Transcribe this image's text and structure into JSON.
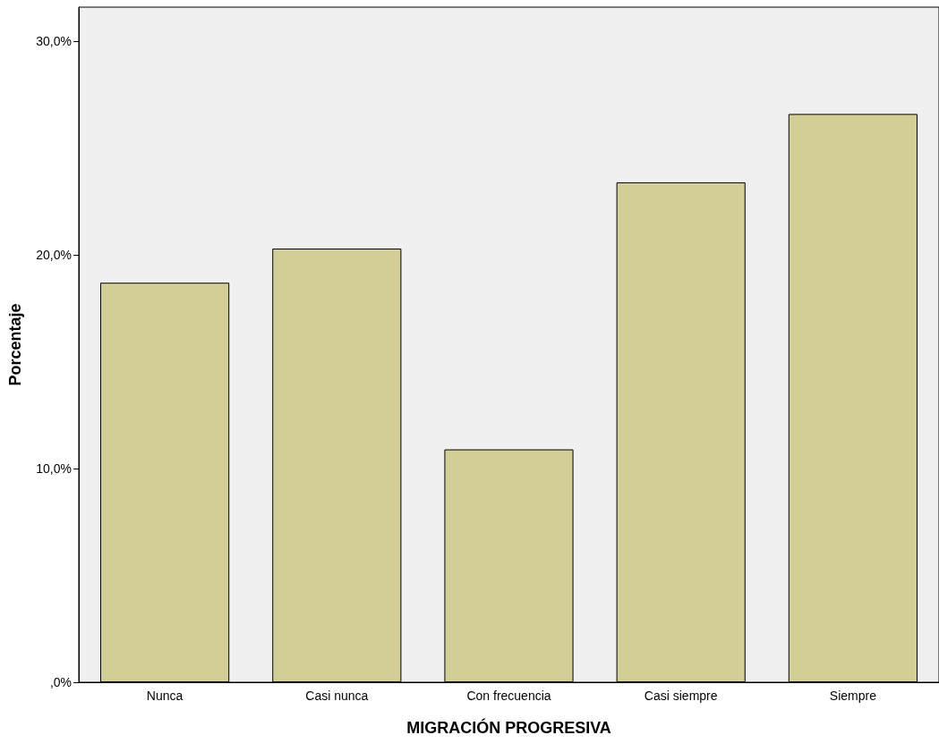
{
  "chart_data": {
    "type": "bar",
    "xlabel": "MIGRACIÓN PROGRESIVA",
    "ylabel": "Porcentaje",
    "categories": [
      "Nunca",
      "Casi nunca",
      "Con frecuencia",
      "Casi siempre",
      "Siempre"
    ],
    "values": [
      18.7,
      20.3,
      10.9,
      23.4,
      26.6
    ],
    "color": "#d3ce96",
    "ylim": [
      0,
      31.6
    ],
    "yticks": [
      {
        "value": 0,
        "label": ",0%"
      },
      {
        "value": 10,
        "label": "10,0%"
      },
      {
        "value": 20,
        "label": "20,0%"
      },
      {
        "value": 30,
        "label": "30,0%"
      }
    ],
    "grid": false
  }
}
